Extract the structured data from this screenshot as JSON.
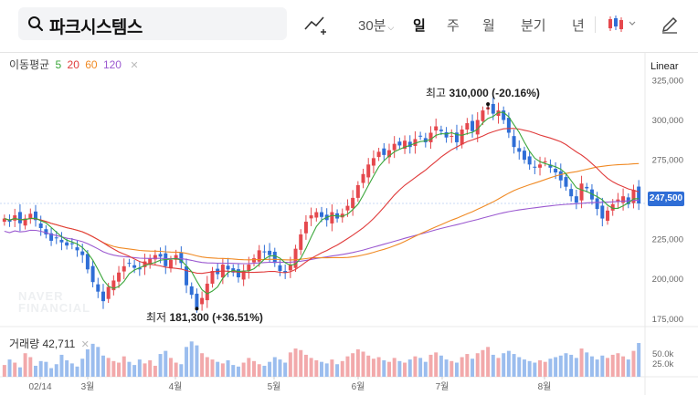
{
  "search": {
    "value": "파크시스템스"
  },
  "periods": [
    {
      "label": "30분",
      "has_dropdown": true,
      "active": false
    },
    {
      "label": "일",
      "active": true
    },
    {
      "label": "주",
      "active": false
    },
    {
      "label": "월",
      "active": false
    },
    {
      "label": "분기",
      "active": false
    },
    {
      "label": "년",
      "active": false
    }
  ],
  "moving_average": {
    "label": "이동평균",
    "periods": [
      {
        "label": "5",
        "color": "#3aa63a"
      },
      {
        "label": "20",
        "color": "#e03b3b"
      },
      {
        "label": "60",
        "color": "#f08a24"
      },
      {
        "label": "120",
        "color": "#9b59d0"
      }
    ]
  },
  "scale_mode": "Linear",
  "watermark": {
    "line1": "NAVER",
    "line2": "FINANCIAL"
  },
  "colors": {
    "up": "#e5484d",
    "down": "#2f6ed6",
    "ma5": "#3aa63a",
    "ma20": "#e03b3b",
    "ma60": "#f08a24",
    "ma120": "#9b59d0"
  },
  "annotations": {
    "high": {
      "prefix": "최고",
      "value": "310,000",
      "change": "(-20.16%)"
    },
    "low": {
      "prefix": "최저",
      "value": "181,300",
      "change": "(+36.51%)"
    }
  },
  "current_price": "247,500",
  "volume": {
    "label": "거래량",
    "value": "42,711",
    "axis_labels": [
      "50.0k",
      "25.0k"
    ]
  },
  "chart_data": {
    "type": "candlestick",
    "y_axis_ticks": [
      "325,000",
      "300,000",
      "275,000",
      "250,000",
      "225,000",
      "200,000",
      "175,000"
    ],
    "y_axis_values": [
      325000,
      300000,
      275000,
      250000,
      225000,
      200000,
      175000
    ],
    "x_axis_labels": [
      "02/14",
      "3월",
      "4월",
      "5월",
      "6월",
      "7월",
      "8월"
    ],
    "ylim": [
      170000,
      325000
    ],
    "high": 310000,
    "low": 181300,
    "last_close": 247500,
    "close_series": [
      238000,
      236000,
      240000,
      235000,
      238000,
      241000,
      237000,
      232000,
      228000,
      224000,
      226000,
      223000,
      221000,
      222000,
      218000,
      215000,
      206000,
      198000,
      192000,
      186000,
      195000,
      199000,
      204000,
      208000,
      210000,
      207000,
      206000,
      211000,
      213000,
      215000,
      214000,
      208000,
      212000,
      215000,
      210000,
      196000,
      190000,
      182000,
      188000,
      197000,
      205000,
      203000,
      209000,
      206000,
      204000,
      201000,
      205000,
      209000,
      213000,
      218000,
      217000,
      215000,
      210000,
      205000,
      204000,
      209000,
      219000,
      228000,
      236000,
      240000,
      242000,
      239000,
      237000,
      242000,
      238000,
      241000,
      246000,
      251000,
      259000,
      266000,
      272000,
      276000,
      280000,
      278000,
      281000,
      285000,
      284000,
      287000,
      283000,
      288000,
      290000,
      286000,
      292000,
      296000,
      293000,
      289000,
      290000,
      286000,
      294000,
      298000,
      293000,
      300000,
      306000,
      308000,
      304000,
      306000,
      300000,
      292000,
      283000,
      280000,
      275000,
      272000,
      270000,
      272000,
      274000,
      270000,
      267000,
      262000,
      258000,
      252000,
      248000,
      260000,
      257000,
      250000,
      244000,
      238000,
      243000,
      247000,
      250000,
      252000,
      247000,
      256000,
      247500
    ],
    "volume_series": [
      15,
      22,
      18,
      12,
      30,
      25,
      14,
      20,
      19,
      11,
      16,
      28,
      21,
      17,
      13,
      23,
      35,
      42,
      38,
      27,
      24,
      20,
      18,
      26,
      19,
      15,
      22,
      17,
      21,
      14,
      29,
      33,
      24,
      18,
      16,
      38,
      45,
      40,
      30,
      25,
      22,
      19,
      17,
      21,
      15,
      13,
      18,
      24,
      20,
      16,
      14,
      19,
      25,
      22,
      18,
      31,
      36,
      34,
      28,
      24,
      21,
      19,
      17,
      22,
      16,
      20,
      26,
      30,
      35,
      32,
      27,
      23,
      25,
      21,
      19,
      24,
      20,
      18,
      22,
      26,
      24,
      19,
      28,
      31,
      27,
      22,
      20,
      18,
      25,
      29,
      23,
      30,
      34,
      38,
      28,
      24,
      30,
      33,
      29,
      25,
      22,
      20,
      18,
      21,
      19,
      23,
      25,
      27,
      30,
      28,
      24,
      36,
      31,
      26,
      22,
      27,
      24,
      28,
      30,
      26,
      22,
      33,
      43
    ]
  }
}
